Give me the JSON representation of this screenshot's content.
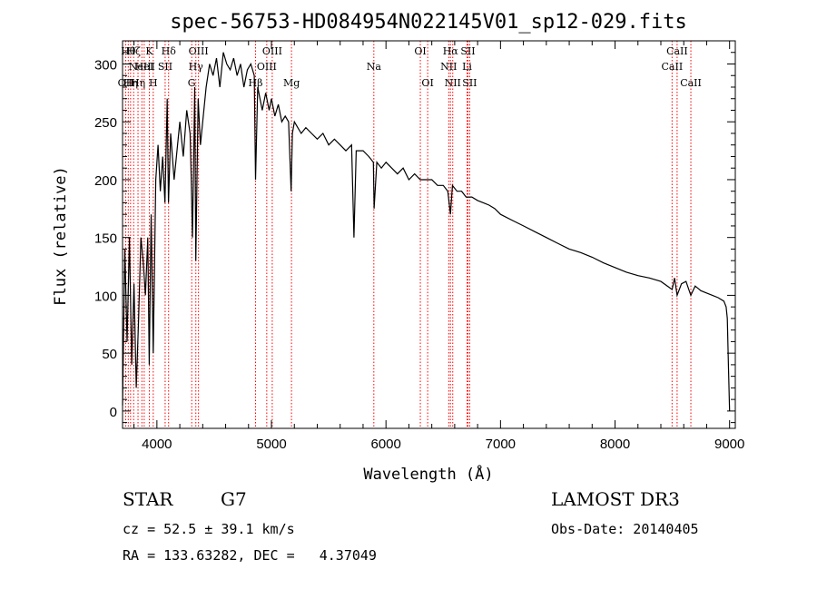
{
  "chart_data": {
    "type": "line",
    "title": "spec-56753-HD084954N022145V01_sp12-029.fits",
    "xlabel": "Wavelength (Å)",
    "ylabel": "Flux (relative)",
    "xlim": [
      3700,
      9050
    ],
    "ylim": [
      -15,
      320
    ],
    "xticks": [
      4000,
      5000,
      6000,
      7000,
      8000,
      9000
    ],
    "yticks": [
      0,
      50,
      100,
      150,
      200,
      250,
      300
    ],
    "line_color": "#ff0000",
    "series": [
      {
        "name": "flux",
        "color": "#000000",
        "x": [
          3700,
          3720,
          3740,
          3760,
          3780,
          3800,
          3820,
          3840,
          3860,
          3880,
          3900,
          3920,
          3933,
          3950,
          3968,
          3990,
          4010,
          4030,
          4050,
          4070,
          4090,
          4101,
          4120,
          4150,
          4180,
          4200,
          4230,
          4260,
          4290,
          4300,
          4310,
          4320,
          4330,
          4340,
          4360,
          4380,
          4400,
          4430,
          4460,
          4490,
          4520,
          4550,
          4580,
          4610,
          4640,
          4670,
          4700,
          4730,
          4760,
          4790,
          4820,
          4850,
          4861,
          4880,
          4900,
          4920,
          4950,
          4980,
          5000,
          5030,
          5060,
          5090,
          5120,
          5150,
          5172,
          5183,
          5200,
          5230,
          5260,
          5300,
          5350,
          5400,
          5450,
          5500,
          5550,
          5600,
          5650,
          5700,
          5720,
          5740,
          5800,
          5850,
          5890,
          5896,
          5920,
          5960,
          6000,
          6050,
          6100,
          6150,
          6200,
          6250,
          6300,
          6350,
          6400,
          6450,
          6500,
          6540,
          6563,
          6580,
          6620,
          6660,
          6700,
          6750,
          6800,
          6850,
          6900,
          6950,
          7000,
          7100,
          7200,
          7300,
          7400,
          7500,
          7600,
          7700,
          7800,
          7900,
          8000,
          8100,
          8200,
          8300,
          8400,
          8498,
          8520,
          8542,
          8580,
          8620,
          8662,
          8700,
          8750,
          8800,
          8850,
          8900,
          8950,
          8970,
          8980,
          8990,
          9000
        ],
        "y": [
          5,
          140,
          60,
          150,
          40,
          110,
          20,
          80,
          150,
          130,
          100,
          150,
          40,
          170,
          50,
          200,
          230,
          190,
          220,
          180,
          270,
          180,
          240,
          200,
          230,
          250,
          220,
          260,
          240,
          200,
          150,
          210,
          280,
          130,
          270,
          230,
          250,
          280,
          300,
          290,
          305,
          280,
          310,
          300,
          295,
          305,
          290,
          300,
          280,
          295,
          300,
          290,
          200,
          280,
          270,
          260,
          275,
          260,
          270,
          255,
          265,
          250,
          255,
          250,
          190,
          240,
          250,
          245,
          240,
          245,
          240,
          235,
          240,
          230,
          235,
          230,
          225,
          230,
          150,
          225,
          225,
          220,
          215,
          175,
          215,
          210,
          215,
          210,
          205,
          210,
          200,
          205,
          200,
          200,
          200,
          195,
          195,
          190,
          170,
          195,
          190,
          190,
          185,
          185,
          182,
          180,
          178,
          175,
          170,
          165,
          160,
          155,
          150,
          145,
          140,
          137,
          133,
          128,
          124,
          120,
          117,
          115,
          112,
          105,
          115,
          100,
          110,
          112,
          100,
          108,
          104,
          102,
          100,
          98,
          95,
          90,
          80,
          40,
          0
        ]
      }
    ],
    "lines": [
      {
        "x": 3728,
        "label": "OII",
        "row": 3
      },
      {
        "x": 3750,
        "label": "Hθ",
        "row": 1
      },
      {
        "x": 3770,
        "label": "Hη",
        "row": 3
      },
      {
        "x": 3797,
        "label": "Hζ",
        "row": 1
      },
      {
        "x": 3835,
        "label": "Hη",
        "row": 3
      },
      {
        "x": 3869,
        "label": "NeIII",
        "row": 2
      },
      {
        "x": 3889,
        "label": "HeI",
        "row": 2
      },
      {
        "x": 3934,
        "label": "K",
        "row": 1
      },
      {
        "x": 3968,
        "label": "H",
        "row": 3
      },
      {
        "x": 4072,
        "label": "SII",
        "row": 2
      },
      {
        "x": 4102,
        "label": "Hδ",
        "row": 1
      },
      {
        "x": 4304,
        "label": "G",
        "row": 3
      },
      {
        "x": 4340,
        "label": "Hγ",
        "row": 2
      },
      {
        "x": 4363,
        "label": "OIII",
        "row": 1
      },
      {
        "x": 4861,
        "label": "Hβ",
        "row": 3
      },
      {
        "x": 4959,
        "label": "OIII",
        "row": 2
      },
      {
        "x": 5007,
        "label": "OIII",
        "row": 1
      },
      {
        "x": 5175,
        "label": "Mg",
        "row": 3
      },
      {
        "x": 5894,
        "label": "Na",
        "row": 2
      },
      {
        "x": 6300,
        "label": "OI",
        "row": 1
      },
      {
        "x": 6364,
        "label": "OI",
        "row": 3
      },
      {
        "x": 6548,
        "label": "NII",
        "row": 2
      },
      {
        "x": 6563,
        "label": "Hα",
        "row": 1
      },
      {
        "x": 6583,
        "label": "NII",
        "row": 3
      },
      {
        "x": 6708,
        "label": "Li",
        "row": 2
      },
      {
        "x": 6716,
        "label": "SII",
        "row": 1
      },
      {
        "x": 6731,
        "label": "SII",
        "row": 3
      },
      {
        "x": 8498,
        "label": "CaII",
        "row": 2
      },
      {
        "x": 8542,
        "label": "CaII",
        "row": 1
      },
      {
        "x": 8662,
        "label": "CaII",
        "row": 3
      }
    ]
  },
  "info": {
    "class": "STAR",
    "subclass": "G7",
    "survey": "LAMOST DR3",
    "cz": "cz = 52.5 ± 39.1 km/s",
    "obs_date": "Obs-Date: 20140405",
    "coords": "RA = 133.63282, DEC =   4.37049"
  }
}
